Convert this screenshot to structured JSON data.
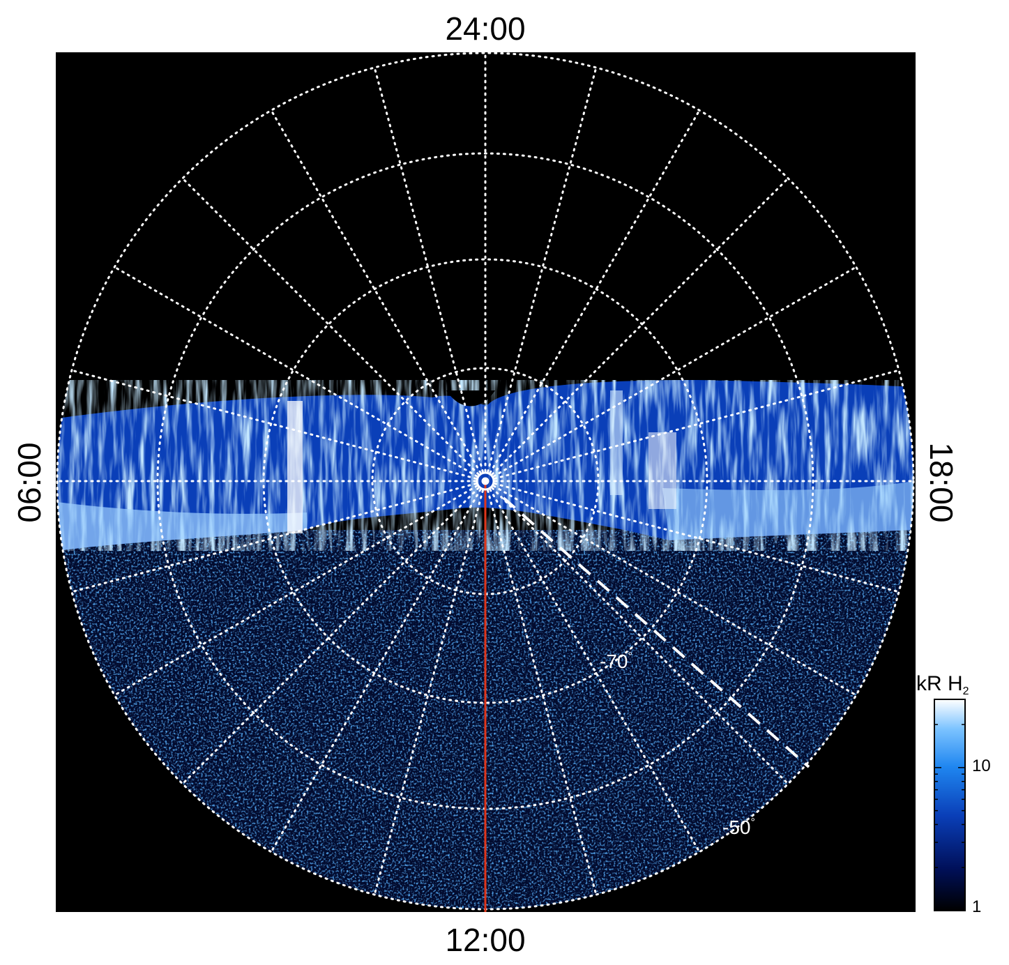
{
  "image": {
    "description_kind": "polar projection of auroral emission",
    "local_time_labels": {
      "top": "24:00",
      "bottom": "12:00",
      "left": "06:00",
      "right": "18:00"
    },
    "latitude_labels": [
      {
        "text": "-70",
        "unit": "°"
      },
      {
        "text": "-50",
        "unit": "°"
      }
    ],
    "colorbar": {
      "title_main": "kR H",
      "title_sub": "2",
      "scale": "log",
      "range": [
        1,
        30
      ],
      "ticks": [
        {
          "value": 10,
          "label": "10"
        },
        {
          "value": 1,
          "label": "1"
        }
      ]
    },
    "colors": {
      "background": "#000000",
      "grid": "#ffffff",
      "meridian_line": "#e0361b",
      "colormap": [
        "#000000",
        "#00105a",
        "#0a3fb8",
        "#1f86f0",
        "#7cc3ff",
        "#ffffff"
      ]
    }
  }
}
